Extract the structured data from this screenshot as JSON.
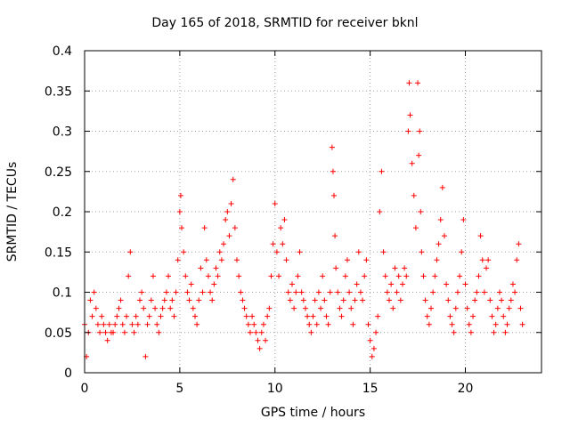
{
  "chart_data": {
    "type": "scatter",
    "title": "Day 165 of 2018, SRMTID for receiver bknl",
    "xlabel": "GPS time / hours",
    "ylabel": "SRMTID / TECUs",
    "xlim": [
      0,
      24
    ],
    "ylim": [
      0,
      0.4
    ],
    "xticks": [
      0,
      5,
      10,
      15,
      20
    ],
    "xtick_labels": [
      "0",
      "5",
      "10",
      "15",
      "20"
    ],
    "yticks": [
      0,
      0.05,
      0.1,
      0.15,
      0.2,
      0.25,
      0.3,
      0.35,
      0.4
    ],
    "ytick_labels": [
      "0",
      "0.05",
      "0.1",
      "0.15",
      "0.2",
      "0.25",
      "0.3",
      "0.35",
      "0.4"
    ],
    "grid": true,
    "marker": "+",
    "color": "#ff0000",
    "series": [
      {
        "name": "SRMTID",
        "points": [
          [
            0.0,
            0.06
          ],
          [
            0.1,
            0.02
          ],
          [
            0.2,
            0.05
          ],
          [
            0.3,
            0.09
          ],
          [
            0.4,
            0.07
          ],
          [
            0.5,
            0.1
          ],
          [
            0.6,
            0.08
          ],
          [
            0.7,
            0.06
          ],
          [
            0.8,
            0.05
          ],
          [
            0.9,
            0.07
          ],
          [
            1.0,
            0.06
          ],
          [
            1.1,
            0.05
          ],
          [
            1.2,
            0.04
          ],
          [
            1.3,
            0.06
          ],
          [
            1.4,
            0.05
          ],
          [
            1.5,
            0.05
          ],
          [
            1.6,
            0.06
          ],
          [
            1.7,
            0.07
          ],
          [
            1.8,
            0.08
          ],
          [
            1.9,
            0.09
          ],
          [
            2.0,
            0.06
          ],
          [
            2.1,
            0.05
          ],
          [
            2.2,
            0.07
          ],
          [
            2.3,
            0.12
          ],
          [
            2.4,
            0.15
          ],
          [
            2.5,
            0.06
          ],
          [
            2.6,
            0.05
          ],
          [
            2.7,
            0.07
          ],
          [
            2.8,
            0.06
          ],
          [
            2.9,
            0.09
          ],
          [
            3.0,
            0.1
          ],
          [
            3.1,
            0.08
          ],
          [
            3.2,
            0.02
          ],
          [
            3.3,
            0.06
          ],
          [
            3.4,
            0.07
          ],
          [
            3.5,
            0.09
          ],
          [
            3.6,
            0.12
          ],
          [
            3.7,
            0.08
          ],
          [
            3.8,
            0.06
          ],
          [
            3.9,
            0.05
          ],
          [
            4.0,
            0.07
          ],
          [
            4.1,
            0.08
          ],
          [
            4.2,
            0.09
          ],
          [
            4.3,
            0.1
          ],
          [
            4.4,
            0.12
          ],
          [
            4.5,
            0.08
          ],
          [
            4.6,
            0.09
          ],
          [
            4.7,
            0.07
          ],
          [
            4.8,
            0.1
          ],
          [
            4.9,
            0.14
          ],
          [
            5.0,
            0.2
          ],
          [
            5.05,
            0.22
          ],
          [
            5.1,
            0.18
          ],
          [
            5.2,
            0.15
          ],
          [
            5.3,
            0.12
          ],
          [
            5.4,
            0.1
          ],
          [
            5.5,
            0.09
          ],
          [
            5.6,
            0.11
          ],
          [
            5.7,
            0.08
          ],
          [
            5.8,
            0.07
          ],
          [
            5.9,
            0.06
          ],
          [
            6.0,
            0.09
          ],
          [
            6.1,
            0.13
          ],
          [
            6.2,
            0.1
          ],
          [
            6.3,
            0.18
          ],
          [
            6.4,
            0.14
          ],
          [
            6.5,
            0.12
          ],
          [
            6.6,
            0.1
          ],
          [
            6.7,
            0.09
          ],
          [
            6.8,
            0.11
          ],
          [
            6.9,
            0.13
          ],
          [
            7.0,
            0.12
          ],
          [
            7.1,
            0.15
          ],
          [
            7.2,
            0.14
          ],
          [
            7.3,
            0.16
          ],
          [
            7.4,
            0.19
          ],
          [
            7.5,
            0.2
          ],
          [
            7.6,
            0.17
          ],
          [
            7.7,
            0.21
          ],
          [
            7.8,
            0.24
          ],
          [
            7.9,
            0.18
          ],
          [
            8.0,
            0.14
          ],
          [
            8.1,
            0.12
          ],
          [
            8.2,
            0.1
          ],
          [
            8.3,
            0.09
          ],
          [
            8.4,
            0.08
          ],
          [
            8.5,
            0.07
          ],
          [
            8.6,
            0.06
          ],
          [
            8.7,
            0.05
          ],
          [
            8.8,
            0.07
          ],
          [
            8.9,
            0.06
          ],
          [
            9.0,
            0.05
          ],
          [
            9.1,
            0.04
          ],
          [
            9.2,
            0.03
          ],
          [
            9.3,
            0.05
          ],
          [
            9.4,
            0.06
          ],
          [
            9.5,
            0.04
          ],
          [
            9.6,
            0.07
          ],
          [
            9.7,
            0.08
          ],
          [
            9.8,
            0.12
          ],
          [
            9.9,
            0.16
          ],
          [
            10.0,
            0.21
          ],
          [
            10.1,
            0.15
          ],
          [
            10.2,
            0.12
          ],
          [
            10.3,
            0.18
          ],
          [
            10.4,
            0.16
          ],
          [
            10.5,
            0.19
          ],
          [
            10.6,
            0.14
          ],
          [
            10.7,
            0.1
          ],
          [
            10.8,
            0.09
          ],
          [
            10.9,
            0.11
          ],
          [
            11.0,
            0.08
          ],
          [
            11.1,
            0.1
          ],
          [
            11.2,
            0.12
          ],
          [
            11.3,
            0.15
          ],
          [
            11.4,
            0.1
          ],
          [
            11.5,
            0.09
          ],
          [
            11.6,
            0.08
          ],
          [
            11.7,
            0.07
          ],
          [
            11.8,
            0.06
          ],
          [
            11.9,
            0.05
          ],
          [
            12.0,
            0.07
          ],
          [
            12.1,
            0.09
          ],
          [
            12.2,
            0.06
          ],
          [
            12.3,
            0.1
          ],
          [
            12.4,
            0.08
          ],
          [
            12.5,
            0.12
          ],
          [
            12.6,
            0.09
          ],
          [
            12.7,
            0.07
          ],
          [
            12.8,
            0.06
          ],
          [
            12.9,
            0.1
          ],
          [
            13.0,
            0.28
          ],
          [
            13.05,
            0.25
          ],
          [
            13.1,
            0.22
          ],
          [
            13.15,
            0.17
          ],
          [
            13.2,
            0.13
          ],
          [
            13.3,
            0.1
          ],
          [
            13.4,
            0.08
          ],
          [
            13.5,
            0.07
          ],
          [
            13.6,
            0.09
          ],
          [
            13.7,
            0.12
          ],
          [
            13.8,
            0.14
          ],
          [
            13.9,
            0.1
          ],
          [
            14.0,
            0.08
          ],
          [
            14.1,
            0.06
          ],
          [
            14.2,
            0.09
          ],
          [
            14.3,
            0.11
          ],
          [
            14.4,
            0.15
          ],
          [
            14.5,
            0.1
          ],
          [
            14.6,
            0.09
          ],
          [
            14.7,
            0.12
          ],
          [
            14.8,
            0.14
          ],
          [
            14.9,
            0.06
          ],
          [
            15.0,
            0.04
          ],
          [
            15.1,
            0.02
          ],
          [
            15.2,
            0.03
          ],
          [
            15.3,
            0.05
          ],
          [
            15.4,
            0.07
          ],
          [
            15.5,
            0.2
          ],
          [
            15.6,
            0.25
          ],
          [
            15.7,
            0.15
          ],
          [
            15.8,
            0.12
          ],
          [
            15.9,
            0.1
          ],
          [
            16.0,
            0.09
          ],
          [
            16.1,
            0.11
          ],
          [
            16.2,
            0.08
          ],
          [
            16.3,
            0.13
          ],
          [
            16.4,
            0.1
          ],
          [
            16.5,
            0.12
          ],
          [
            16.6,
            0.09
          ],
          [
            16.7,
            0.11
          ],
          [
            16.8,
            0.13
          ],
          [
            16.9,
            0.12
          ],
          [
            17.0,
            0.3
          ],
          [
            17.05,
            0.36
          ],
          [
            17.1,
            0.32
          ],
          [
            17.2,
            0.26
          ],
          [
            17.3,
            0.22
          ],
          [
            17.4,
            0.18
          ],
          [
            17.5,
            0.36
          ],
          [
            17.55,
            0.27
          ],
          [
            17.6,
            0.3
          ],
          [
            17.65,
            0.2
          ],
          [
            17.7,
            0.15
          ],
          [
            17.8,
            0.12
          ],
          [
            17.9,
            0.09
          ],
          [
            18.0,
            0.07
          ],
          [
            18.1,
            0.06
          ],
          [
            18.2,
            0.08
          ],
          [
            18.3,
            0.1
          ],
          [
            18.4,
            0.12
          ],
          [
            18.5,
            0.14
          ],
          [
            18.6,
            0.16
          ],
          [
            18.7,
            0.19
          ],
          [
            18.8,
            0.23
          ],
          [
            18.9,
            0.17
          ],
          [
            19.0,
            0.11
          ],
          [
            19.1,
            0.09
          ],
          [
            19.2,
            0.07
          ],
          [
            19.3,
            0.06
          ],
          [
            19.4,
            0.05
          ],
          [
            19.5,
            0.08
          ],
          [
            19.6,
            0.1
          ],
          [
            19.7,
            0.12
          ],
          [
            19.8,
            0.15
          ],
          [
            19.9,
            0.19
          ],
          [
            20.0,
            0.11
          ],
          [
            20.1,
            0.08
          ],
          [
            20.2,
            0.06
          ],
          [
            20.3,
            0.05
          ],
          [
            20.4,
            0.07
          ],
          [
            20.5,
            0.09
          ],
          [
            20.6,
            0.1
          ],
          [
            20.7,
            0.12
          ],
          [
            20.8,
            0.17
          ],
          [
            20.9,
            0.14
          ],
          [
            21.0,
            0.1
          ],
          [
            21.1,
            0.13
          ],
          [
            21.2,
            0.14
          ],
          [
            21.3,
            0.09
          ],
          [
            21.4,
            0.07
          ],
          [
            21.5,
            0.05
          ],
          [
            21.6,
            0.06
          ],
          [
            21.7,
            0.08
          ],
          [
            21.8,
            0.1
          ],
          [
            21.9,
            0.09
          ],
          [
            22.0,
            0.07
          ],
          [
            22.1,
            0.05
          ],
          [
            22.2,
            0.06
          ],
          [
            22.3,
            0.08
          ],
          [
            22.4,
            0.09
          ],
          [
            22.5,
            0.11
          ],
          [
            22.6,
            0.1
          ],
          [
            22.7,
            0.14
          ],
          [
            22.8,
            0.16
          ],
          [
            22.9,
            0.08
          ],
          [
            23.0,
            0.06
          ]
        ]
      }
    ]
  }
}
